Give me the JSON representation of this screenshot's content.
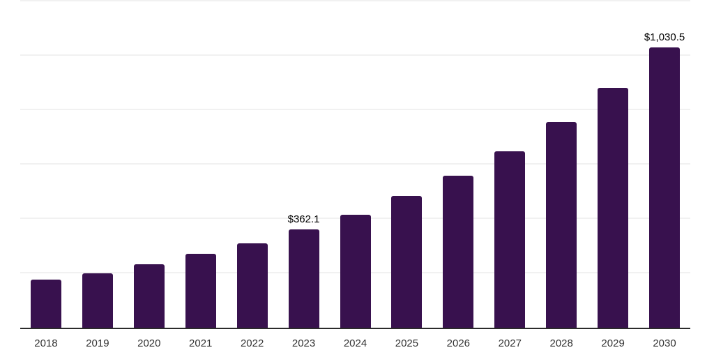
{
  "chart_data": {
    "type": "bar",
    "title": "",
    "xlabel": "",
    "ylabel": "",
    "categories": [
      "2018",
      "2019",
      "2020",
      "2021",
      "2022",
      "2023",
      "2024",
      "2025",
      "2026",
      "2027",
      "2028",
      "2029",
      "2030"
    ],
    "values": [
      176.9,
      200.4,
      232.9,
      272.0,
      311.4,
      362.1,
      416.3,
      484.4,
      557.8,
      650.0,
      755.6,
      882.8,
      1030.5
    ],
    "data_labels": [
      "",
      "",
      "",
      "",
      "",
      "$362.1",
      "",
      "",
      "",
      "",
      "",
      "",
      "$1,030.5"
    ],
    "ylim": [
      0,
      1200
    ],
    "gridline_interval": 200,
    "grid": true,
    "legend_position": "none",
    "colors": {
      "bar": "#38114E",
      "axis_line": "#2b2b2b",
      "gridline": "#f1f1f1",
      "tick_label": "#333333",
      "data_label": "#000000",
      "background": "#ffffff"
    }
  }
}
